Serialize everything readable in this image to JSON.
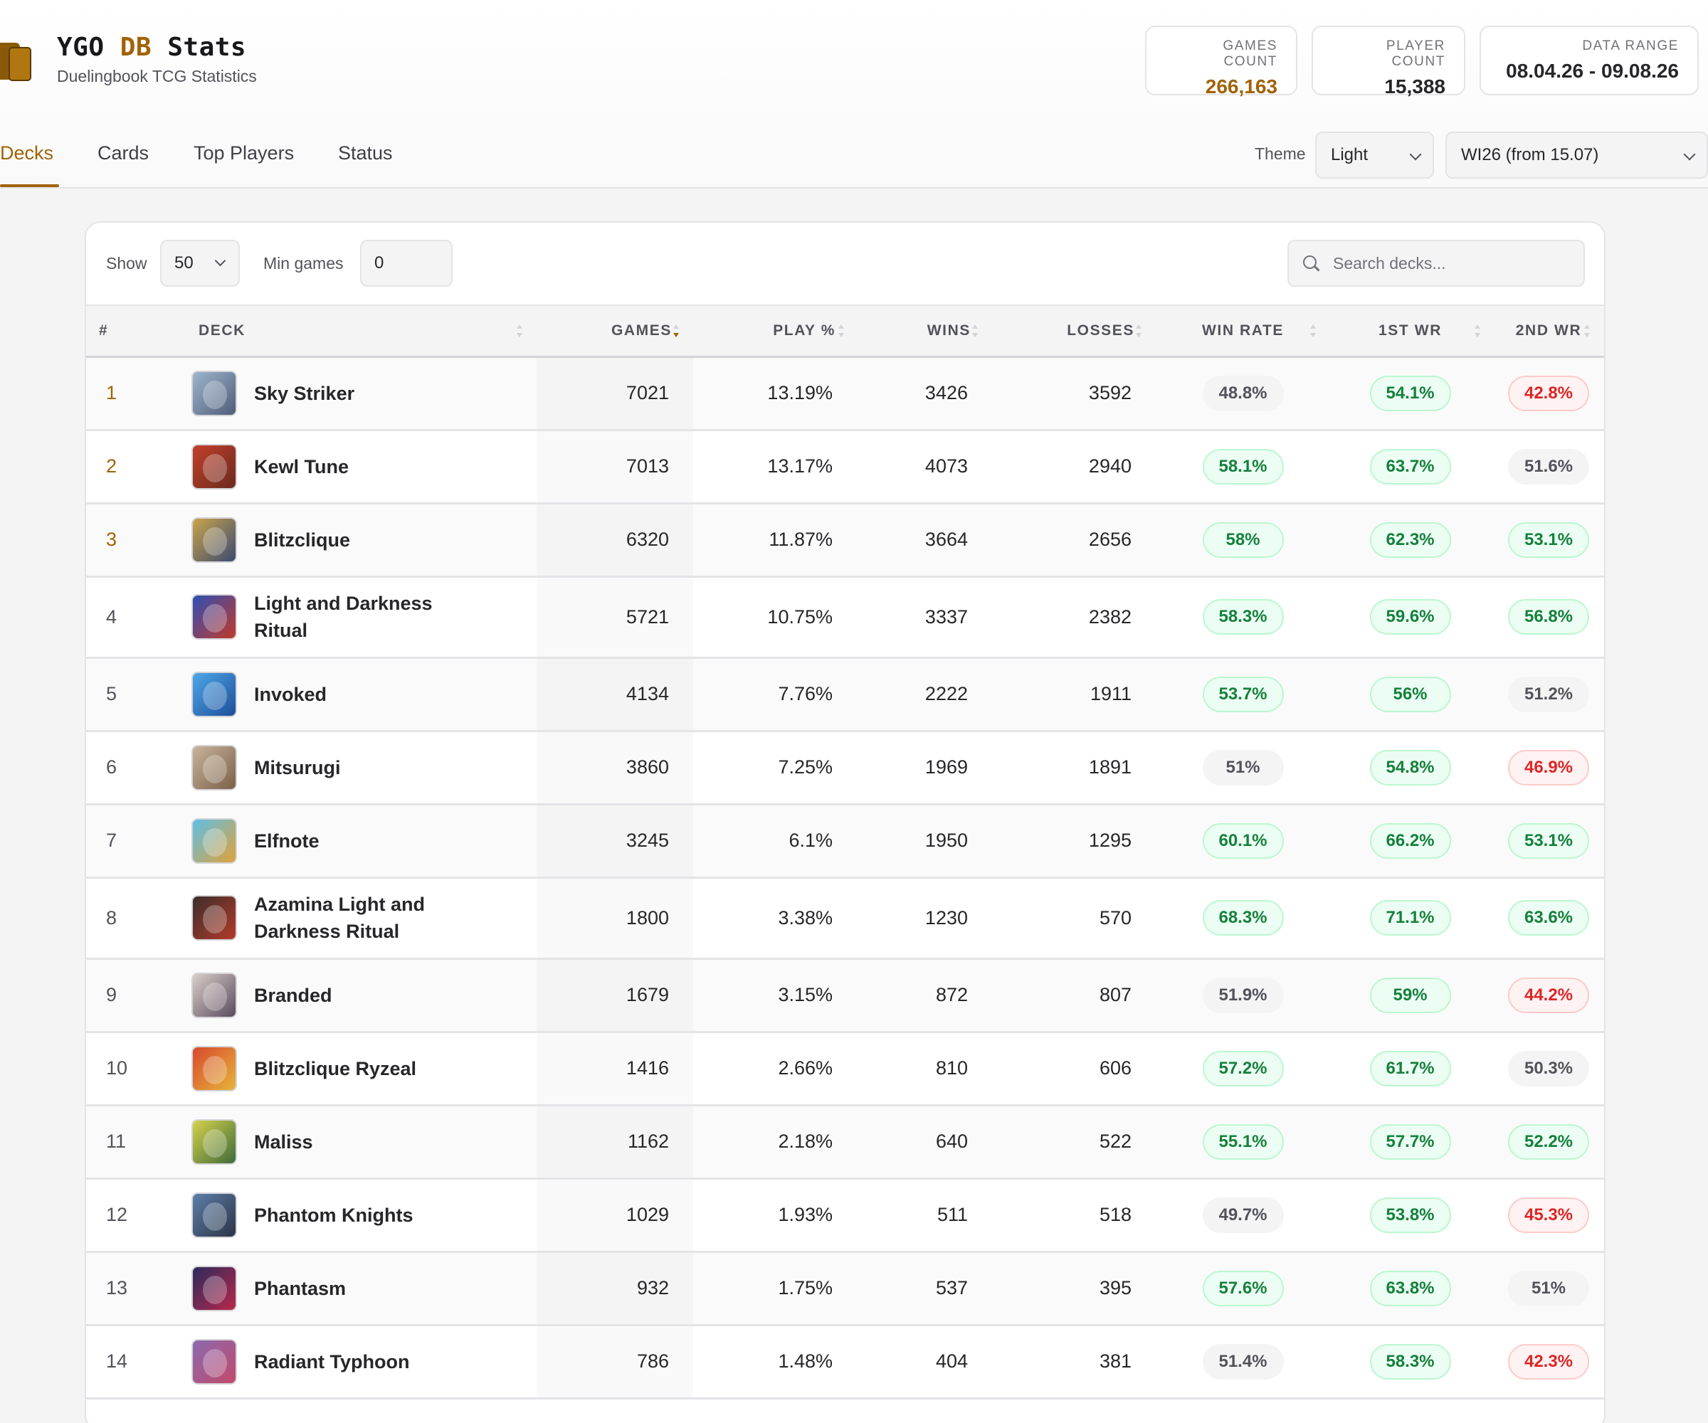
{
  "brand": {
    "title_prefix": "YGO ",
    "title_accent": "DB",
    "title_suffix": " Stats",
    "subtitle": "Duelingbook TCG Statistics"
  },
  "stats": {
    "games": {
      "label": "GAMES COUNT",
      "value": "266,163"
    },
    "players": {
      "label": "PLAYER COUNT",
      "value": "15,388"
    },
    "range": {
      "label": "DATA RANGE",
      "value": "08.04.26 - 09.08.26"
    }
  },
  "tabs": [
    {
      "label": "Decks",
      "active": true
    },
    {
      "label": "Cards",
      "active": false
    },
    {
      "label": "Top Players",
      "active": false
    },
    {
      "label": "Status",
      "active": false
    }
  ],
  "theme": {
    "label": "Theme",
    "value": "Light"
  },
  "season": {
    "value": "WI26 (from 15.07)"
  },
  "toolbar": {
    "show_label": "Show",
    "show_value": "50",
    "min_games_label": "Min games",
    "min_games_value": "0",
    "search_placeholder": "Search decks..."
  },
  "columns": [
    "#",
    "DECK",
    "GAMES",
    "PLAY %",
    "WINS",
    "LOSSES",
    "WIN RATE",
    "1ST WR",
    "2ND WR"
  ],
  "rows": [
    {
      "rank": "1",
      "deck": "Sky Striker",
      "games": "7021",
      "play": "13.19%",
      "wins": "3426",
      "losses": "3592",
      "wr": "48.8%",
      "wr_s": "neutral",
      "wr1": "54.1%",
      "wr1_s": "good",
      "wr2": "42.8%",
      "wr2_s": "bad",
      "thumb": [
        "#9fb6cc",
        "#4f5c7a"
      ]
    },
    {
      "rank": "2",
      "deck": "Kewl Tune",
      "games": "7013",
      "play": "13.17%",
      "wins": "4073",
      "losses": "2940",
      "wr": "58.1%",
      "wr_s": "good",
      "wr1": "63.7%",
      "wr1_s": "good",
      "wr2": "51.6%",
      "wr2_s": "neutral",
      "thumb": [
        "#c2402a",
        "#6b2a1f"
      ]
    },
    {
      "rank": "3",
      "deck": "Blitzclique",
      "games": "6320",
      "play": "11.87%",
      "wins": "3664",
      "losses": "2656",
      "wr": "58%",
      "wr_s": "good",
      "wr1": "62.3%",
      "wr1_s": "good",
      "wr2": "53.1%",
      "wr2_s": "good",
      "thumb": [
        "#c9a44a",
        "#3c4a70"
      ]
    },
    {
      "rank": "4",
      "deck": "Light and Darkness Ritual",
      "games": "5721",
      "play": "10.75%",
      "wins": "3337",
      "losses": "2382",
      "wr": "58.3%",
      "wr_s": "good",
      "wr1": "59.6%",
      "wr1_s": "good",
      "wr2": "56.8%",
      "wr2_s": "good",
      "thumb": [
        "#2f4fb5",
        "#c0392b"
      ]
    },
    {
      "rank": "5",
      "deck": "Invoked",
      "games": "4134",
      "play": "7.76%",
      "wins": "2222",
      "losses": "1911",
      "wr": "53.7%",
      "wr_s": "good",
      "wr1": "56%",
      "wr1_s": "good",
      "wr2": "51.2%",
      "wr2_s": "neutral",
      "thumb": [
        "#4ea7e8",
        "#1d4f9a"
      ]
    },
    {
      "rank": "6",
      "deck": "Mitsurugi",
      "games": "3860",
      "play": "7.25%",
      "wins": "1969",
      "losses": "1891",
      "wr": "51%",
      "wr_s": "neutral",
      "wr1": "54.8%",
      "wr1_s": "good",
      "wr2": "46.9%",
      "wr2_s": "bad",
      "thumb": [
        "#c8b49a",
        "#7a6048"
      ]
    },
    {
      "rank": "7",
      "deck": "Elfnote",
      "games": "3245",
      "play": "6.1%",
      "wins": "1950",
      "losses": "1295",
      "wr": "60.1%",
      "wr_s": "good",
      "wr1": "66.2%",
      "wr1_s": "good",
      "wr2": "53.1%",
      "wr2_s": "good",
      "thumb": [
        "#5cc0e6",
        "#e0a23a"
      ]
    },
    {
      "rank": "8",
      "deck": "Azamina Light and Darkness Ritual",
      "games": "1800",
      "play": "3.38%",
      "wins": "1230",
      "losses": "570",
      "wr": "68.3%",
      "wr_s": "good",
      "wr1": "71.1%",
      "wr1_s": "good",
      "wr2": "63.6%",
      "wr2_s": "good",
      "thumb": [
        "#3a2e2a",
        "#b33a2a"
      ]
    },
    {
      "rank": "9",
      "deck": "Branded",
      "games": "1679",
      "play": "3.15%",
      "wins": "872",
      "losses": "807",
      "wr": "51.9%",
      "wr_s": "neutral",
      "wr1": "59%",
      "wr1_s": "good",
      "wr2": "44.2%",
      "wr2_s": "bad",
      "thumb": [
        "#d9cfc7",
        "#5a4a5e"
      ]
    },
    {
      "rank": "10",
      "deck": "Blitzclique Ryzeal",
      "games": "1416",
      "play": "2.66%",
      "wins": "810",
      "losses": "606",
      "wr": "57.2%",
      "wr_s": "good",
      "wr1": "61.7%",
      "wr1_s": "good",
      "wr2": "50.3%",
      "wr2_s": "neutral",
      "thumb": [
        "#d8482e",
        "#e6b53a"
      ]
    },
    {
      "rank": "11",
      "deck": "Maliss",
      "games": "1162",
      "play": "2.18%",
      "wins": "640",
      "losses": "522",
      "wr": "55.1%",
      "wr_s": "good",
      "wr1": "57.7%",
      "wr1_s": "good",
      "wr2": "52.2%",
      "wr2_s": "good",
      "thumb": [
        "#d4d24a",
        "#3f6a3a"
      ]
    },
    {
      "rank": "12",
      "deck": "Phantom Knights",
      "games": "1029",
      "play": "1.93%",
      "wins": "511",
      "losses": "518",
      "wr": "49.7%",
      "wr_s": "neutral",
      "wr1": "53.8%",
      "wr1_s": "good",
      "wr2": "45.3%",
      "wr2_s": "bad",
      "thumb": [
        "#5d7fa8",
        "#2b3447"
      ]
    },
    {
      "rank": "13",
      "deck": "Phantasm",
      "games": "932",
      "play": "1.75%",
      "wins": "537",
      "losses": "395",
      "wr": "57.6%",
      "wr_s": "good",
      "wr1": "63.8%",
      "wr1_s": "good",
      "wr2": "51%",
      "wr2_s": "neutral",
      "thumb": [
        "#2b2a5c",
        "#b8284b"
      ]
    },
    {
      "rank": "14",
      "deck": "Radiant Typhoon",
      "games": "786",
      "play": "1.48%",
      "wins": "404",
      "losses": "381",
      "wr": "51.4%",
      "wr_s": "neutral",
      "wr1": "58.3%",
      "wr1_s": "good",
      "wr2": "42.3%",
      "wr2_s": "bad",
      "thumb": [
        "#8a6ab0",
        "#c24a6a"
      ]
    }
  ]
}
